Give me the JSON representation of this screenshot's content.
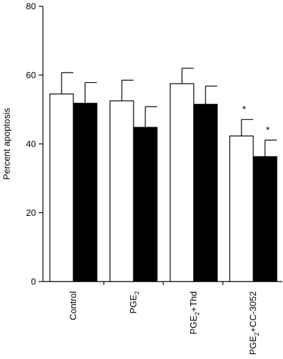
{
  "chart_data": {
    "type": "bar",
    "ylabel": "Percent apoptosis",
    "ylim": [
      0,
      80
    ],
    "yticks": [
      0,
      20,
      40,
      60,
      80
    ],
    "categories": [
      {
        "main": "Control",
        "sub": "",
        "rest": ""
      },
      {
        "main": "PGE",
        "sub": "2",
        "rest": ""
      },
      {
        "main": "PGE",
        "sub": "2",
        "rest": "+Thd"
      },
      {
        "main": "PGE",
        "sub": "2",
        "rest": "+CC-3052"
      }
    ],
    "series": [
      {
        "fill": "#ffffff",
        "values": [
          54.5,
          52.5,
          57.5,
          42.3
        ],
        "errors": [
          6.2,
          6.0,
          4.5,
          4.8
        ],
        "significant": [
          false,
          false,
          false,
          true
        ]
      },
      {
        "fill": "#000000",
        "values": [
          51.8,
          44.8,
          51.5,
          36.3
        ],
        "errors": [
          6.0,
          6.0,
          5.3,
          4.8
        ],
        "significant": [
          false,
          false,
          false,
          true
        ]
      }
    ],
    "significance_marker": "*"
  }
}
